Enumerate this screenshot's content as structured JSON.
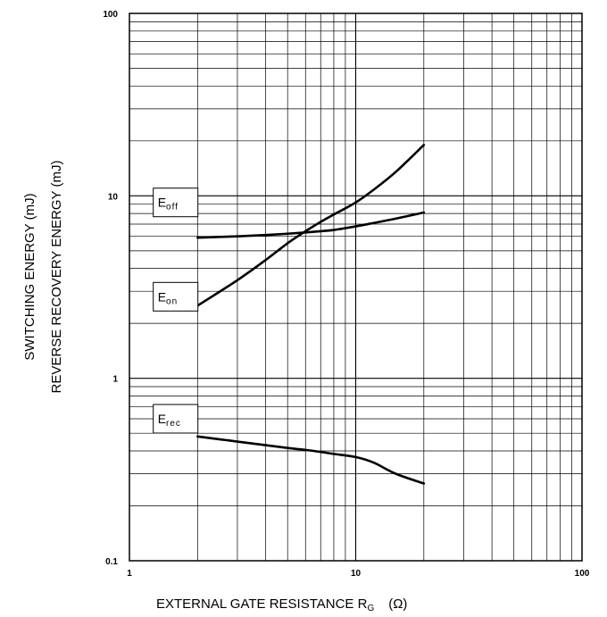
{
  "chart_data": {
    "type": "line",
    "x_scale": "log",
    "y_scale": "log",
    "xlim": [
      1,
      100
    ],
    "ylim": [
      0.1,
      100
    ],
    "grid": true,
    "x_ticks": [
      {
        "value": 1,
        "label": "1"
      },
      {
        "value": 10,
        "label": "10"
      },
      {
        "value": 100,
        "label": "100"
      }
    ],
    "y_ticks": [
      {
        "value": 0.1,
        "label": "0.1"
      },
      {
        "value": 1,
        "label": "1"
      },
      {
        "value": 10,
        "label": "10"
      },
      {
        "value": 100,
        "label": "100"
      }
    ],
    "xlabel": {
      "main": "EXTERNAL GATE RESISTANCE   R",
      "sub": "G",
      "unit": "(Ω)"
    },
    "ylabel": [
      "SWITCHING ENERGY   (mJ)",
      "REVERSE RECOVERY ENERGY   (mJ)"
    ],
    "series": [
      {
        "name": "E_off",
        "label_main": "E",
        "label_sub": "off",
        "label_at": {
          "x": 1.6,
          "y": 9.2
        },
        "points": [
          [
            2,
            5.9
          ],
          [
            3,
            6.0
          ],
          [
            4,
            6.1
          ],
          [
            5,
            6.2
          ],
          [
            6,
            6.3
          ],
          [
            7,
            6.4
          ],
          [
            8,
            6.5
          ],
          [
            10,
            6.8
          ],
          [
            12,
            7.1
          ],
          [
            15,
            7.5
          ],
          [
            20,
            8.1
          ]
        ]
      },
      {
        "name": "E_on",
        "label_main": "E",
        "label_sub": "on",
        "label_at": {
          "x": 1.6,
          "y": 2.8
        },
        "points": [
          [
            2,
            2.5
          ],
          [
            3,
            3.45
          ],
          [
            4,
            4.45
          ],
          [
            5,
            5.5
          ],
          [
            6,
            6.4
          ],
          [
            7,
            7.2
          ],
          [
            8,
            7.9
          ],
          [
            10,
            9.2
          ],
          [
            12,
            10.8
          ],
          [
            15,
            13.5
          ],
          [
            20,
            19
          ]
        ]
      },
      {
        "name": "E_rec",
        "label_main": "E",
        "label_sub": "rec",
        "label_at": {
          "x": 1.6,
          "y": 0.6
        },
        "points": [
          [
            2,
            0.48
          ],
          [
            3,
            0.45
          ],
          [
            4,
            0.43
          ],
          [
            5,
            0.415
          ],
          [
            6,
            0.405
          ],
          [
            7,
            0.395
          ],
          [
            8,
            0.385
          ],
          [
            10,
            0.37
          ],
          [
            12,
            0.345
          ],
          [
            15,
            0.3
          ],
          [
            20,
            0.265
          ]
        ]
      }
    ]
  }
}
